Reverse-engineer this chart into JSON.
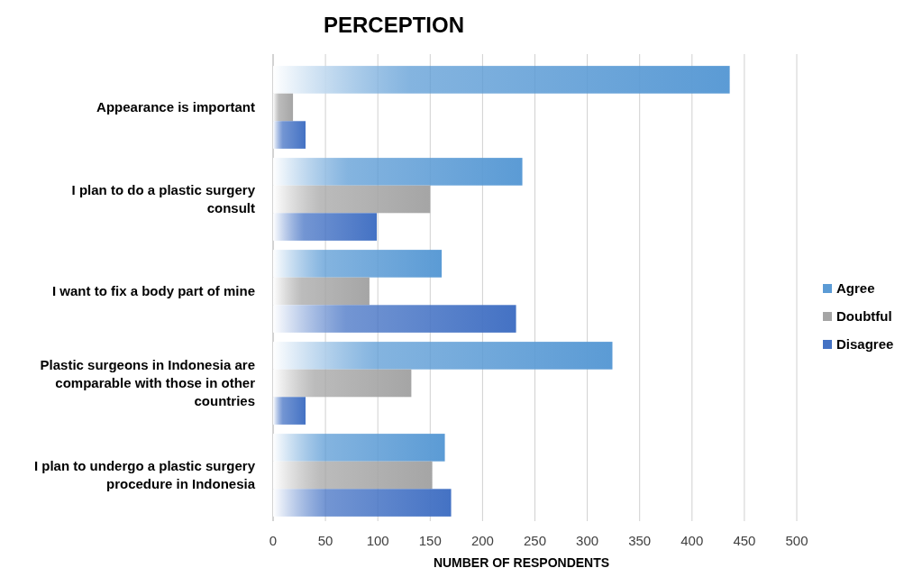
{
  "chart_data": {
    "type": "bar",
    "orientation": "horizontal",
    "title": "PERCEPTION",
    "xlabel": "NUMBER OF RESPONDENTS",
    "categories": [
      "Appearance is important",
      "I plan to do a plastic surgery consult",
      "I want to fix a body part of mine",
      "Plastic surgeons in Indonesia are comparable with those in other countries",
      "I plan to undergo a plastic surgery procedure in Indonesia"
    ],
    "series": [
      {
        "name": "Agree",
        "color": "#5b9bd5",
        "values": [
          436,
          238,
          161,
          324,
          164
        ]
      },
      {
        "name": "Doubtful",
        "color": "#a5a5a5",
        "values": [
          19,
          150,
          92,
          132,
          152
        ]
      },
      {
        "name": "Disagree",
        "color": "#4472c4",
        "values": [
          31,
          99,
          232,
          31,
          170
        ]
      }
    ],
    "xlim": [
      0,
      500
    ],
    "xticks": [
      0,
      50,
      100,
      150,
      200,
      250,
      300,
      350,
      400,
      450,
      500
    ],
    "grid": "x",
    "legend": "right"
  }
}
